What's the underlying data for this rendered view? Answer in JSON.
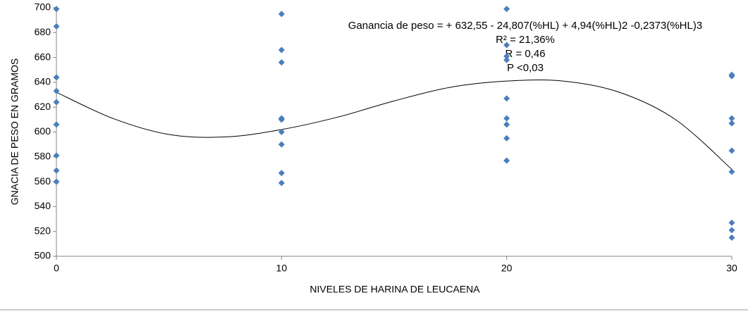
{
  "chart_data": {
    "type": "scatter",
    "x_label": "NIVELES DE HARINA DE  LEUCAENA",
    "y_label": "GNACIA DE PESO EN GRAMOS",
    "annotations": [
      "Ganancia de peso =  + 632,55 - 24,807(%HL)   + 4,94(%HL)2   -0,2373(%HL)3",
      "R² = 21,36%",
      "R = 0,46",
      "P <0,03"
    ],
    "xlim": [
      0,
      30
    ],
    "xticks": [
      0,
      10,
      20,
      30
    ],
    "ylim": [
      500,
      700
    ],
    "yticks": [
      500,
      520,
      540,
      560,
      580,
      600,
      620,
      640,
      660,
      680,
      700
    ],
    "series": [
      {
        "color": "#4a7ebb",
        "x": [
          0,
          0,
          0,
          0,
          0,
          0,
          0,
          0,
          0,
          10,
          10,
          10,
          10,
          10,
          10,
          10,
          10,
          10,
          20,
          20,
          20,
          20,
          20,
          20,
          20,
          20,
          20,
          30,
          30,
          30,
          30,
          30,
          30,
          30,
          30,
          30
        ],
        "values": [
          699,
          685,
          644,
          633,
          624,
          606,
          581,
          569,
          560,
          695,
          666,
          656,
          611,
          610,
          600,
          590,
          567,
          559,
          699,
          670,
          661,
          658,
          627,
          611,
          606,
          595,
          577,
          646,
          645,
          611,
          607,
          585,
          568,
          527,
          521,
          515
        ]
      }
    ],
    "trend": {
      "x": [
        0,
        2.5,
        5,
        7.5,
        10,
        12.5,
        15,
        17.5,
        20,
        22.5,
        25,
        27.5,
        30
      ],
      "y": [
        632,
        611,
        598,
        596,
        602,
        612,
        625,
        636,
        641,
        641,
        632,
        610,
        570
      ]
    }
  }
}
